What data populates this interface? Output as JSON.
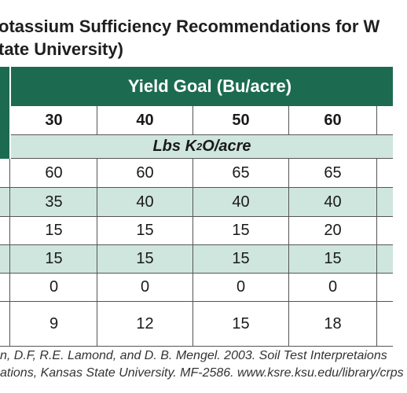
{
  "title": {
    "line1": "otassium Sufficiency Recommendations for W",
    "line2": "tate University)"
  },
  "table": {
    "group_header": "Yield Goal (Bu/acre)",
    "columns": [
      "30",
      "40",
      "50",
      "60"
    ],
    "unit_prefix": "Lbs K",
    "unit_sub": "2",
    "unit_suffix": "O/acre",
    "rows": [
      [
        "60",
        "60",
        "65",
        "65"
      ],
      [
        "35",
        "40",
        "40",
        "40"
      ],
      [
        "15",
        "15",
        "15",
        "20"
      ],
      [
        "15",
        "15",
        "15",
        "15"
      ],
      [
        "0",
        "0",
        "0",
        "0"
      ],
      [
        "9",
        "12",
        "15",
        "18"
      ]
    ]
  },
  "footer": {
    "line1": "n, D.F, R.E. Lamond, and D. B. Mengel. 2003. Soil Test Interpretaions",
    "line2": "ations, Kansas State University. MF-2586. www.ksre.ksu.edu/library/crps"
  }
}
